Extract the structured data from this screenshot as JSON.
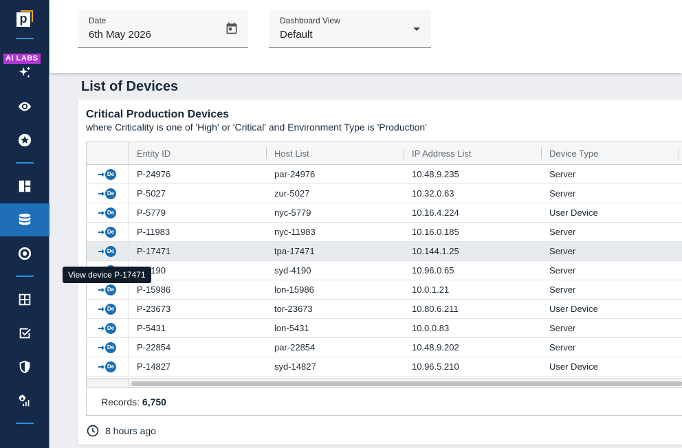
{
  "sidebar": {
    "badge": "AI LABS",
    "items": [
      {
        "icon": "sparkles-icon"
      },
      {
        "icon": "eye-icon"
      },
      {
        "icon": "star-badge-icon"
      },
      {
        "icon": "dashboard-icon"
      },
      {
        "icon": "database-icon",
        "active": true
      },
      {
        "icon": "target-icon"
      },
      {
        "icon": "calculator-icon"
      },
      {
        "icon": "checkbox-icon"
      },
      {
        "icon": "shield-icon"
      },
      {
        "icon": "settings-chart-icon"
      }
    ]
  },
  "filters": {
    "date_label": "Date",
    "date_value": "6th May 2026",
    "view_label": "Dashboard View",
    "view_value": "Default"
  },
  "section_title": "List of Devices",
  "card": {
    "title": "Critical Production Devices",
    "subtitle": "where Criticality is one of 'High' or 'Critical' and Environment Type is 'Production'"
  },
  "table": {
    "columns": [
      "Entity ID",
      "Host List",
      "IP Address List",
      "Device Type"
    ],
    "rows": [
      [
        "P-24976",
        "par-24976",
        "10.48.9.235",
        "Server"
      ],
      [
        "P-5027",
        "zur-5027",
        "10.32.0.63",
        "Server"
      ],
      [
        "P-5779",
        "nyc-5779",
        "10.16.4.224",
        "User Device"
      ],
      [
        "P-11983",
        "nyc-11983",
        "10.16.0.185",
        "Server"
      ],
      [
        "P-17471",
        "tpa-17471",
        "10.144.1.25",
        "Server"
      ],
      [
        "P-4190",
        "syd-4190",
        "10.96.0.65",
        "Server"
      ],
      [
        "P-15986",
        "lon-15986",
        "10.0.1.21",
        "Server"
      ],
      [
        "P-23673",
        "tor-23673",
        "10.80.6.211",
        "User Device"
      ],
      [
        "P-5431",
        "lon-5431",
        "10.0.0.83",
        "Server"
      ],
      [
        "P-22854",
        "par-22854",
        "10.48.9.202",
        "Server"
      ],
      [
        "P-14827",
        "syd-14827",
        "10.96.5.210",
        "User Device"
      ]
    ],
    "highlighted_row": 4,
    "row_icon_text": "De"
  },
  "records": {
    "label": "Records:",
    "count": "6,750"
  },
  "updated": "8 hours ago",
  "tooltip": "View device P-17471"
}
